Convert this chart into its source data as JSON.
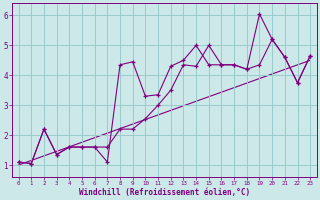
{
  "xlabel": "Windchill (Refroidissement éolien,°C)",
  "bg_color": "#cce8e8",
  "line_color": "#800080",
  "grid_color": "#99cccc",
  "xlim": [
    -0.5,
    23.5
  ],
  "ylim": [
    0.6,
    6.4
  ],
  "xticks": [
    0,
    1,
    2,
    3,
    4,
    5,
    6,
    7,
    8,
    9,
    10,
    11,
    12,
    13,
    14,
    15,
    16,
    17,
    18,
    19,
    20,
    21,
    22,
    23
  ],
  "yticks": [
    1,
    2,
    3,
    4,
    5,
    6
  ],
  "series1_x": [
    0,
    1,
    2,
    3,
    4,
    5,
    6,
    7,
    8,
    9,
    10,
    11,
    12,
    13,
    14,
    15,
    16,
    17,
    18,
    19,
    20,
    21,
    22,
    23
  ],
  "series1_y": [
    1.1,
    1.05,
    2.2,
    1.35,
    1.6,
    1.6,
    1.6,
    1.6,
    2.2,
    2.2,
    2.55,
    3.0,
    3.5,
    4.35,
    4.3,
    5.0,
    4.35,
    4.35,
    4.2,
    4.35,
    5.2,
    4.6,
    3.75,
    4.65
  ],
  "series2_x": [
    0,
    1,
    2,
    3,
    4,
    5,
    6,
    7,
    8,
    9,
    10,
    11,
    12,
    13,
    14,
    15,
    16,
    17,
    18,
    19,
    20,
    21,
    22,
    23
  ],
  "series2_y": [
    1.1,
    1.05,
    2.2,
    1.35,
    1.6,
    1.6,
    1.6,
    1.1,
    4.35,
    4.45,
    3.3,
    3.35,
    4.3,
    4.5,
    5.0,
    4.35,
    4.35,
    4.35,
    4.2,
    6.05,
    5.2,
    4.6,
    3.75,
    4.65
  ],
  "series3_x": [
    0,
    23
  ],
  "series3_y": [
    1.0,
    4.5
  ]
}
